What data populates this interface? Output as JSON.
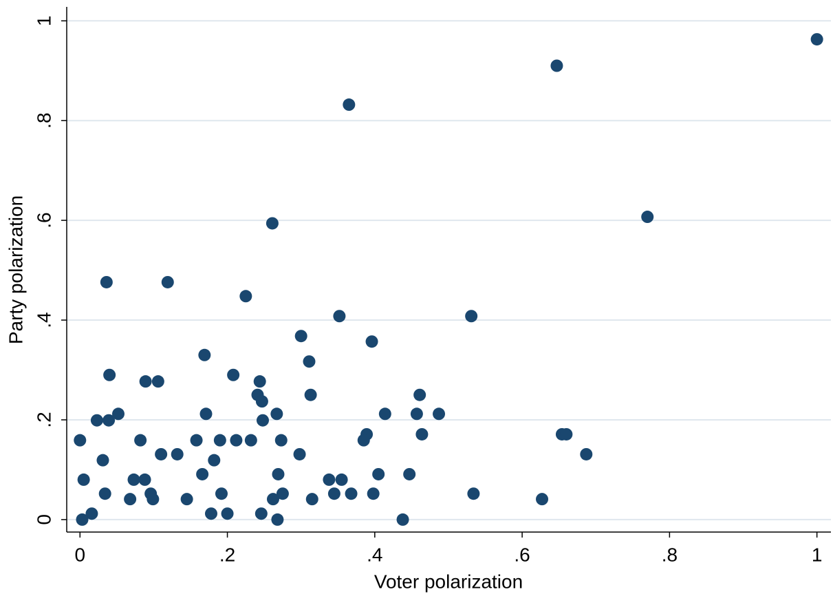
{
  "chart_data": {
    "type": "scatter",
    "x_label": "Voter polarization",
    "y_label": "Party polarization",
    "color": "#1a476f",
    "grid": true,
    "xlim": [
      -0.018,
      1.019
    ],
    "ylim": [
      -0.025,
      1.028
    ],
    "xticks": [
      0,
      {
        "value": 0.2,
        "label": ".2"
      },
      {
        "value": 0.4,
        "label": ".4"
      },
      {
        "value": 0.6,
        "label": ".6"
      },
      {
        "value": 0.8,
        "label": ".8"
      },
      1
    ],
    "yticks": [
      0,
      {
        "value": 0.2,
        "label": ".2"
      },
      {
        "value": 0.4,
        "label": ".4"
      },
      {
        "value": 0.6,
        "label": ".6"
      },
      {
        "value": 0.8,
        "label": ".8"
      },
      1
    ],
    "x": [
      1.0,
      0.647,
      0.365,
      0.77,
      0.261,
      0.036,
      0.119,
      0.225,
      0.352,
      0.531,
      0.396,
      0.3,
      0.169,
      0.311,
      0.04,
      0.208,
      0.089,
      0.106,
      0.244,
      0.241,
      0.313,
      0.461,
      0.247,
      0.052,
      0.171,
      0.267,
      0.414,
      0.457,
      0.487,
      0.023,
      0.039,
      0.248,
      0.389,
      0.464,
      0.654,
      0.66,
      0,
      0.082,
      0.158,
      0.19,
      0.212,
      0.232,
      0.273,
      0.385,
      0.031,
      0.182,
      0.11,
      0.132,
      0.298,
      0.687,
      0.005,
      0.073,
      0.088,
      0.166,
      0.269,
      0.405,
      0.447,
      0.338,
      0.355,
      0.034,
      0.096,
      0.192,
      0.275,
      0.345,
      0.368,
      0.398,
      0.534,
      0.068,
      0.099,
      0.145,
      0.262,
      0.315,
      0.627,
      0.016,
      0.178,
      0.2,
      0.246,
      0.003,
      0.268,
      0.438
    ],
    "values": [
      0.963,
      0.91,
      0.832,
      0.607,
      0.594,
      0.476,
      0.476,
      0.448,
      0.408,
      0.408,
      0.357,
      0.368,
      0.33,
      0.317,
      0.29,
      0.29,
      0.277,
      0.277,
      0.277,
      0.25,
      0.25,
      0.25,
      0.237,
      0.212,
      0.212,
      0.212,
      0.212,
      0.212,
      0.212,
      0.199,
      0.199,
      0.199,
      0.171,
      0.171,
      0.171,
      0.171,
      0.159,
      0.159,
      0.159,
      0.159,
      0.159,
      0.159,
      0.159,
      0.159,
      0.119,
      0.119,
      0.131,
      0.131,
      0.131,
      0.131,
      0.08,
      0.08,
      0.08,
      0.091,
      0.091,
      0.091,
      0.091,
      0.08,
      0.08,
      0.052,
      0.052,
      0.052,
      0.052,
      0.052,
      0.052,
      0.052,
      0.052,
      0.041,
      0.041,
      0.041,
      0.041,
      0.041,
      0.041,
      0.012,
      0.012,
      0.012,
      0.012,
      0,
      0,
      0
    ]
  }
}
